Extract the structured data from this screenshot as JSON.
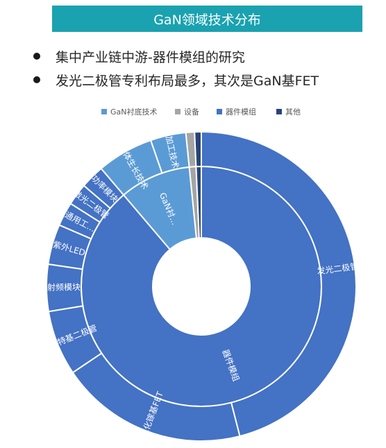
{
  "banner": {
    "title": "GaN领域技术分布"
  },
  "bullets": [
    {
      "text": "集中产业链中游-器件模组的研究"
    },
    {
      "text": "发光二极管专利布局最多，其次是GaN基FET"
    }
  ],
  "chart_data": {
    "type": "sunburst",
    "title": "",
    "legend": {
      "placement": "top",
      "entries": [
        {
          "name": "GaN衬底技术",
          "color": "#5b9bd5"
        },
        {
          "name": "设备",
          "color": "#a5a5a5"
        },
        {
          "name": "器件模组",
          "color": "#4472c4"
        },
        {
          "name": "其他",
          "color": "#264478"
        }
      ]
    },
    "inner": [
      {
        "name": "器件模组",
        "label": "器件模组",
        "value": 88.8,
        "color": "#4472c4"
      },
      {
        "name": "GaN衬底技术",
        "label": "GaN衬...",
        "value": 9.6,
        "color": "#5b9bd5"
      },
      {
        "name": "设备",
        "label": "",
        "value": 0.9,
        "color": "#a5a5a5"
      },
      {
        "name": "其他",
        "label": "",
        "value": 0.7,
        "color": "#264478"
      }
    ],
    "outer": [
      {
        "label": "发光二极管",
        "parent": "器件模组",
        "value": 46.0,
        "color": "#4472c4"
      },
      {
        "label": "氮化镓基FET",
        "parent": "器件模组",
        "value": 19.6,
        "color": "#4472c4"
      },
      {
        "label": "肖特基二极管",
        "parent": "器件模组",
        "value": 6.8,
        "color": "#4472c4"
      },
      {
        "label": "射频模块",
        "parent": "器件模组",
        "value": 4.9,
        "color": "#4472c4"
      },
      {
        "label": "紫外LED",
        "parent": "器件模组",
        "value": 4.2,
        "color": "#4472c4"
      },
      {
        "label": "通用工...",
        "parent": "器件模组",
        "value": 2.5,
        "color": "#4472c4"
      },
      {
        "label": "激光二极管",
        "parent": "器件模组",
        "value": 2.3,
        "color": "#4472c4"
      },
      {
        "label": "功率模块",
        "parent": "器件模组",
        "value": 2.5,
        "color": "#4472c4"
      },
      {
        "label": "晶体生长技术",
        "parent": "GaN衬底技术",
        "value": 5.9,
        "color": "#5b9bd5"
      },
      {
        "label": "加工技术",
        "parent": "GaN衬底技术",
        "value": 3.7,
        "color": "#5b9bd5"
      },
      {
        "label": "",
        "parent": "设备",
        "value": 0.9,
        "color": "#a5a5a5"
      },
      {
        "label": "",
        "parent": "其他",
        "value": 0.7,
        "color": "#264478"
      }
    ]
  }
}
